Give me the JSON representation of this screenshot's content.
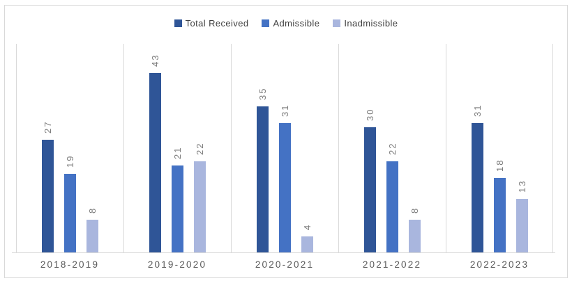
{
  "chart_data": {
    "type": "bar",
    "title": "",
    "xlabel": "",
    "ylabel": "",
    "categories": [
      "2018-2019",
      "2019-2020",
      "2020-2021",
      "2021-2022",
      "2022-2023"
    ],
    "series": [
      {
        "name": "Total Received",
        "color": "#2F5597",
        "values": [
          27,
          43,
          35,
          30,
          31
        ]
      },
      {
        "name": "Admissible",
        "color": "#4472C4",
        "values": [
          19,
          21,
          31,
          22,
          18
        ]
      },
      {
        "name": "Inadmissible",
        "color": "#A9B6DE",
        "values": [
          8,
          22,
          4,
          8,
          13
        ]
      }
    ],
    "ylim": [
      0,
      50
    ],
    "legend_position": "top",
    "data_labels": {
      "show": true,
      "rotation": -90,
      "color": "#7B7B7B"
    },
    "gridlines": {
      "vertical_category_dividers": true,
      "color": "#D9D9D9"
    },
    "axis_line_color": "#D9D9D9"
  },
  "frame": {
    "border_color": "#D9D9D9",
    "background": "#FFFFFF"
  },
  "labels": {
    "category_text_color": "#595959",
    "legend_text_color": "#404040"
  }
}
